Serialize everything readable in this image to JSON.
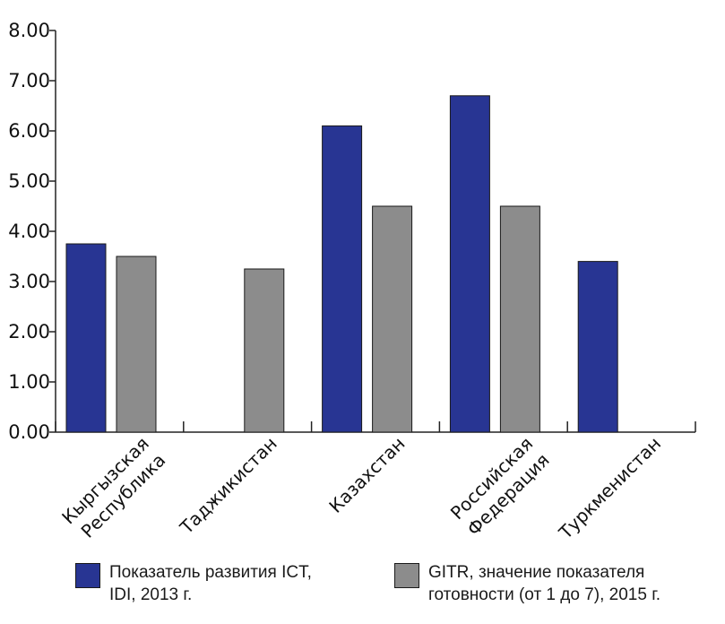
{
  "chart_data": {
    "type": "bar",
    "categories": [
      [
        "Кыргызская",
        "Республика"
      ],
      [
        "Таджикистан"
      ],
      [
        "Казахстан"
      ],
      [
        "Российская",
        "Федерация"
      ],
      [
        "Туркменистан"
      ]
    ],
    "series": [
      {
        "name_lines": [
          "Показатель развития ICT,",
          "IDI, 2013 г."
        ],
        "color": "#283593",
        "values": [
          3.75,
          null,
          6.1,
          6.7,
          3.4
        ]
      },
      {
        "name_lines": [
          "GITR, значение показателя",
          "готовности (от 1 до 7), 2015 г."
        ],
        "color": "#8c8c8c",
        "values": [
          3.5,
          3.25,
          4.5,
          4.5,
          null
        ]
      }
    ],
    "ylim": [
      0,
      8
    ],
    "yticks": [
      "0.00",
      "1.00",
      "2.00",
      "3.00",
      "4.00",
      "5.00",
      "6.00",
      "7.00",
      "8.00"
    ],
    "grid": false,
    "legend_position": "bottom"
  }
}
